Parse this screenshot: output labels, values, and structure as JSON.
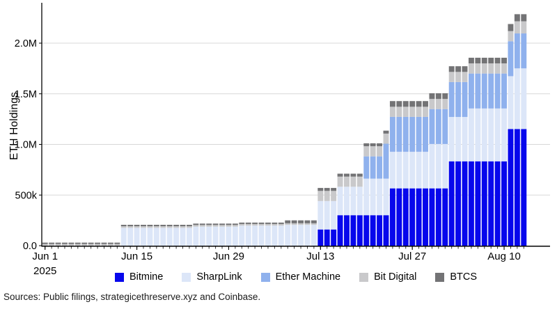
{
  "chart_data": {
    "type": "bar",
    "subtype": "stacked_daily_bars",
    "title": "",
    "ylabel": "ETH Holdings",
    "x_start_date": "2025-06-01",
    "x_end_date": "2025-08-13",
    "num_days": 74,
    "values_unit": "thousands of ETH",
    "ylim_thousands": [
      0,
      2385
    ],
    "grid": "horizontal",
    "legend_position": "bottom",
    "y_ticks": [
      {
        "value_thousands": 0,
        "label": "0.0"
      },
      {
        "value_thousands": 500,
        "label": "500k"
      },
      {
        "value_thousands": 1000,
        "label": "1.0M"
      },
      {
        "value_thousands": 1500,
        "label": "1.5M"
      },
      {
        "value_thousands": 2000,
        "label": "2.0M"
      }
    ],
    "x_ticks": [
      {
        "date": "2025-06-01",
        "label": "Jun 1",
        "sublabel": "2025"
      },
      {
        "date": "2025-06-15",
        "label": "Jun 15"
      },
      {
        "date": "2025-06-29",
        "label": "Jun 29"
      },
      {
        "date": "2025-07-13",
        "label": "Jul 13"
      },
      {
        "date": "2025-07-27",
        "label": "Jul 27"
      },
      {
        "date": "2025-08-10",
        "label": "Aug 10"
      }
    ],
    "series_note": "steps = [date, holdings in thousands of ETH] effective from that date onward; stacked bottom-to-top in listed order",
    "series": [
      {
        "name": "Bitmine",
        "color": "#0707ec",
        "steps": [
          [
            "2025-06-01",
            0
          ],
          [
            "2025-07-13",
            160
          ],
          [
            "2025-07-16",
            301
          ],
          [
            "2025-07-24",
            566
          ],
          [
            "2025-08-02",
            833
          ],
          [
            "2025-08-11",
            1152
          ]
        ]
      },
      {
        "name": "SharpLink",
        "color": "#dce6f8",
        "steps": [
          [
            "2025-06-01",
            0
          ],
          [
            "2025-06-13",
            176
          ],
          [
            "2025-06-24",
            188
          ],
          [
            "2025-07-01",
            198
          ],
          [
            "2025-07-08",
            205
          ],
          [
            "2025-07-13",
            281
          ],
          [
            "2025-07-20",
            361
          ],
          [
            "2025-07-30",
            438
          ],
          [
            "2025-08-05",
            522
          ],
          [
            "2025-08-12",
            599
          ]
        ]
      },
      {
        "name": "Ether Machine",
        "color": "#8fb1ed",
        "steps": [
          [
            "2025-06-01",
            0
          ],
          [
            "2025-07-20",
            220
          ],
          [
            "2025-07-23",
            345
          ]
        ]
      },
      {
        "name": "Bit Digital",
        "color": "#c9c9cb",
        "steps": [
          [
            "2025-06-01",
            16
          ],
          [
            "2025-07-13",
            100
          ],
          [
            "2025-08-12",
            120
          ]
        ]
      },
      {
        "name": "BTCS",
        "color": "#737375",
        "steps": [
          [
            "2025-06-01",
            14
          ],
          [
            "2025-07-08",
            29
          ],
          [
            "2025-07-24",
            56
          ],
          [
            "2025-08-11",
            70
          ]
        ]
      }
    ],
    "colors": {
      "background": "#ffffff",
      "gridline": "#d8d8d8",
      "axis": "#000000",
      "tick_text": "#000000"
    }
  },
  "source_note": "Sources: Public filings, strategicethreserve.xyz and Coinbase."
}
